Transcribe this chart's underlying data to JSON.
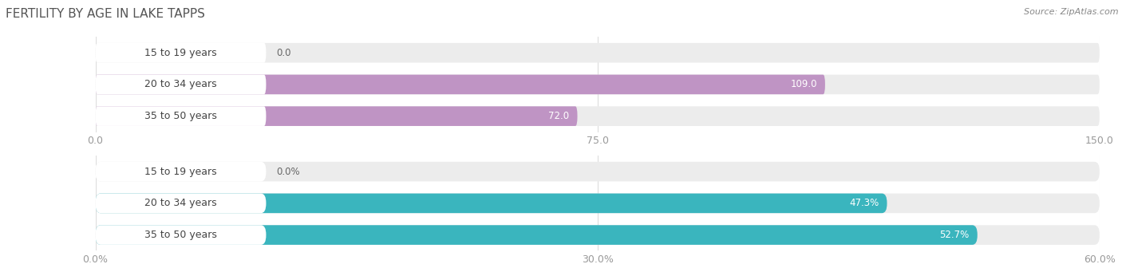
{
  "title": "FERTILITY BY AGE IN LAKE TAPPS",
  "source": "Source: ZipAtlas.com",
  "top_chart": {
    "categories": [
      "15 to 19 years",
      "20 to 34 years",
      "35 to 50 years"
    ],
    "values": [
      0.0,
      109.0,
      72.0
    ],
    "bar_color": "#bf94c4",
    "xlim": [
      0,
      150
    ],
    "xticks": [
      0.0,
      75.0,
      150.0
    ],
    "xtick_labels": [
      "0.0",
      "75.0",
      "150.0"
    ]
  },
  "bottom_chart": {
    "categories": [
      "15 to 19 years",
      "20 to 34 years",
      "35 to 50 years"
    ],
    "values": [
      0.0,
      47.3,
      52.7
    ],
    "bar_color": "#3ab5be",
    "xlim": [
      0,
      60
    ],
    "xticks": [
      0.0,
      30.0,
      60.0
    ],
    "xtick_labels": [
      "0.0%",
      "30.0%",
      "60.0%"
    ]
  },
  "bg_color": "#ffffff",
  "bar_bg_color": "#ececec",
  "label_box_color": "#ffffff",
  "label_fontsize": 9,
  "value_fontsize": 8.5,
  "title_fontsize": 11,
  "source_fontsize": 8,
  "title_color": "#555555",
  "source_color": "#888888",
  "tick_color": "#999999",
  "grid_color": "#dddddd",
  "label_text_color": "#444444",
  "value_text_color_inside": "#ffffff",
  "value_text_color_outside": "#666666"
}
